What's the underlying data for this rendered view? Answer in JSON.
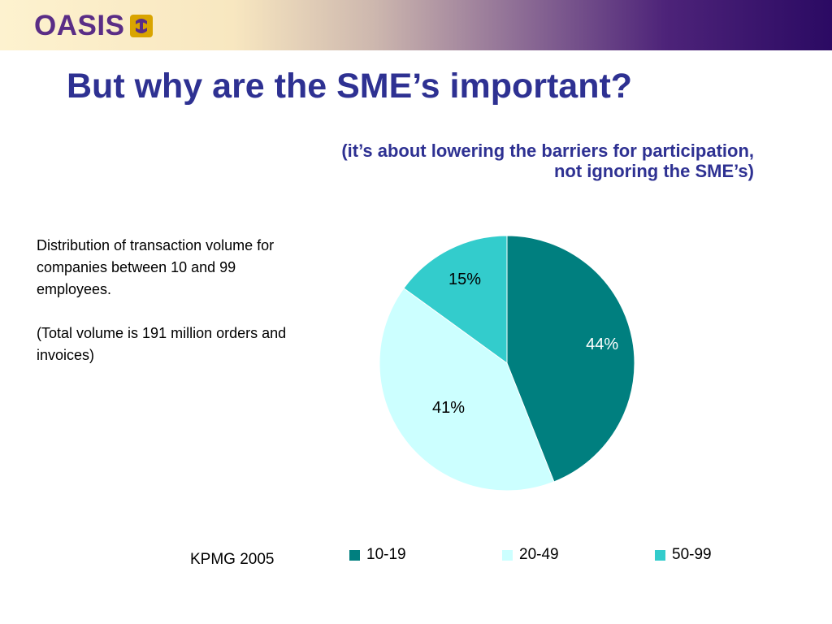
{
  "header": {
    "logo_text": "OASIS",
    "colors": {
      "logo": "#5a2d86",
      "logo_accent": "#d9a400"
    }
  },
  "slide": {
    "title": "But why are the SME’s important?",
    "subtitle_lines": [
      "(it’s about lowering the barriers for participation,",
      "not ignoring the SME’s)"
    ],
    "description_lines": [
      "Distribution of transaction volume for companies between 10 and 99 employees.",
      "(Total volume is 191 million orders and invoices)"
    ],
    "source": "KPMG 2005"
  },
  "chart_data": {
    "type": "pie",
    "categories": [
      "10-19",
      "20-49",
      "50-99"
    ],
    "values": [
      44,
      41,
      15
    ],
    "labels": [
      "44%",
      "41%",
      "15%"
    ],
    "colors": [
      "#007f7f",
      "#ccffff",
      "#33cccc"
    ],
    "label_colors": [
      "#ffffff",
      "#000000",
      "#000000"
    ],
    "legend_position": "bottom"
  }
}
